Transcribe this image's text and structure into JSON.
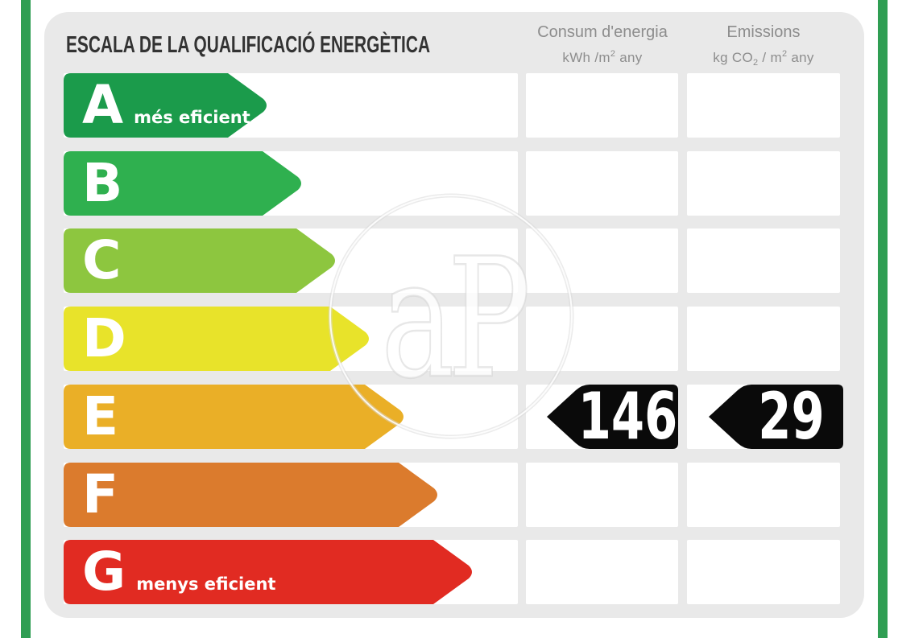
{
  "title": "ESCALA DE LA QUALIFICACIÓ ENERGÈTICA",
  "columns": [
    {
      "label": "Consum d'energia",
      "units": {
        "pre": "kWh /m",
        "sup": "2",
        "post": " any"
      }
    },
    {
      "label": "Emissions",
      "units": {
        "pre": "kg CO",
        "sub": "2",
        "mid": " / m",
        "sup2": "2",
        "post": " any"
      }
    }
  ],
  "rows": [
    {
      "letter": "A",
      "note": "més eficient",
      "color": "#1b9b4b"
    },
    {
      "letter": "B",
      "note": "",
      "color": "#2fb04f"
    },
    {
      "letter": "C",
      "note": "",
      "color": "#8dc63f"
    },
    {
      "letter": "D",
      "note": "",
      "color": "#e8e32a"
    },
    {
      "letter": "E",
      "note": "",
      "color": "#eaaf27"
    },
    {
      "letter": "F",
      "note": "",
      "color": "#db7b2d"
    },
    {
      "letter": "G",
      "note": "menys eficient",
      "color": "#e12b22"
    }
  ],
  "result": {
    "letter": "E",
    "consum": "146",
    "emissions": "29",
    "badge_color": "#0a0a0a"
  },
  "watermark_text": "aP",
  "colors": {
    "edge_stripe": "#2f9e53",
    "panel_background": "#e9e9e9",
    "title_text": "#333333",
    "header_text": "#8d8d8d",
    "badge_background": "#0a0a0a",
    "badge_text": "#ffffff",
    "arrow_text": "#ffffff"
  },
  "chart_data": {
    "type": "table",
    "title": "ESCALA DE LA QUALIFICACIÓ ENERGÈTICA",
    "categories": [
      "A",
      "B",
      "C",
      "D",
      "E",
      "F",
      "G"
    ],
    "category_notes": {
      "A": "més eficient",
      "G": "menys eficient"
    },
    "columns": [
      "Consum d'energia kWh/m² any",
      "Emissions kg CO₂/m² any"
    ],
    "highlighted_rating": "E",
    "values_by_category": {
      "E": {
        "consum_energia_kwh_m2_any": 146,
        "emissions_kg_co2_m2_any": 29
      }
    },
    "scale_colors": [
      "#1b9b4b",
      "#2fb04f",
      "#8dc63f",
      "#e8e32a",
      "#eaaf27",
      "#db7b2d",
      "#e12b22"
    ],
    "legend_position": "none",
    "grid": false
  }
}
